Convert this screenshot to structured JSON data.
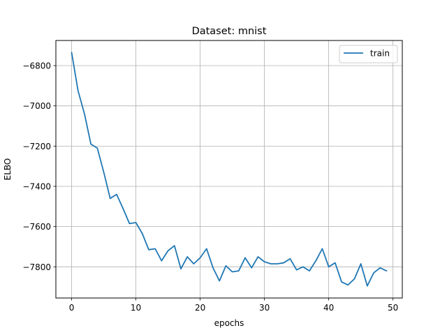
{
  "chart_data": {
    "type": "line",
    "title": "Dataset: mnist",
    "xlabel": "epochs",
    "ylabel": "ELBO",
    "xlim": [
      -2.45,
      51.45
    ],
    "ylim": [
      -7955,
      -6675
    ],
    "xticks": [
      0,
      10,
      20,
      30,
      40,
      50
    ],
    "yticks": [
      -7800,
      -7600,
      -7400,
      -7200,
      -7000,
      -6800
    ],
    "grid": true,
    "legend_position": "upper right",
    "series": [
      {
        "name": "train",
        "color": "#1f77b4",
        "x": [
          0,
          1,
          2,
          3,
          4,
          5,
          6,
          7,
          8,
          9,
          10,
          11,
          12,
          13,
          14,
          15,
          16,
          17,
          18,
          19,
          20,
          21,
          22,
          23,
          24,
          25,
          26,
          27,
          28,
          29,
          30,
          31,
          32,
          33,
          34,
          35,
          36,
          37,
          38,
          39,
          40,
          41,
          42,
          43,
          44,
          45,
          46,
          47,
          48,
          49
        ],
        "y": [
          -6735,
          -6925,
          -7040,
          -7190,
          -7210,
          -7330,
          -7460,
          -7440,
          -7510,
          -7585,
          -7580,
          -7635,
          -7715,
          -7710,
          -7770,
          -7720,
          -7695,
          -7810,
          -7750,
          -7785,
          -7755,
          -7710,
          -7805,
          -7870,
          -7795,
          -7825,
          -7820,
          -7755,
          -7805,
          -7750,
          -7775,
          -7785,
          -7785,
          -7780,
          -7760,
          -7815,
          -7800,
          -7820,
          -7770,
          -7710,
          -7800,
          -7780,
          -7875,
          -7890,
          -7860,
          -7785,
          -7895,
          -7830,
          -7805,
          -7820
        ]
      }
    ]
  }
}
